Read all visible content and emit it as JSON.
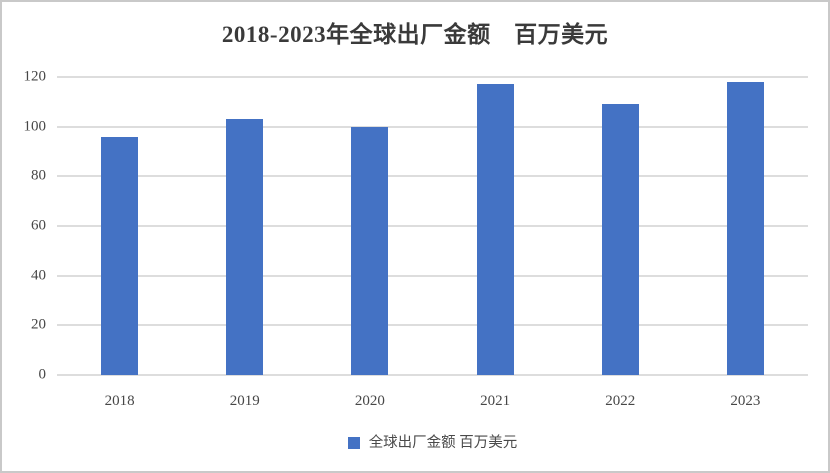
{
  "title": "2018-2023年全球出厂金额　百万美元",
  "legend": {
    "label": "全球出厂金额 百万美元",
    "swatch_color": "#4472C4"
  },
  "colors": {
    "bar": "#4472C4",
    "gridline": "#dddddd",
    "title_text": "#3a3a3a",
    "axis_text": "#474747",
    "frame_border": "#c9c9c9",
    "background": "#ffffff"
  },
  "chart_data": {
    "type": "bar",
    "title": "2018-2023年全球出厂金额　百万美元",
    "categories": [
      "2018",
      "2019",
      "2020",
      "2021",
      "2022",
      "2023"
    ],
    "values": [
      96,
      103,
      100,
      117,
      109,
      118
    ],
    "series_name": "全球出厂金额 百万美元",
    "xlabel": "",
    "ylabel": "",
    "ylim": [
      0,
      120
    ],
    "yticks": [
      0,
      20,
      40,
      60,
      80,
      100,
      120
    ],
    "grid": true,
    "legend_position": "bottom",
    "bar_color": "#4472C4"
  }
}
